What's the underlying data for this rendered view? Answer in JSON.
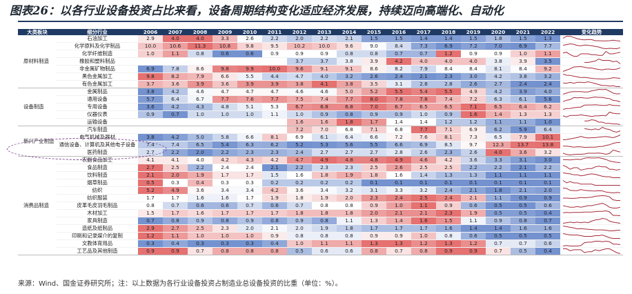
{
  "title": "图表26：以各行业设备投资占比来看，设备周期结构变化适应经济发展，持续迈向高端化、自动化",
  "source": "来源：Wind、国金证券研究所；注：以上数据为各行业设备投资占制造业总设备投资的比重（单位：%）。",
  "headers": {
    "category": "大类板块",
    "subcategory": "细分行业",
    "years": [
      "2006",
      "2007",
      "2008",
      "2009",
      "2010",
      "2011",
      "2012",
      "2013",
      "2014",
      "2015",
      "2016",
      "2017",
      "2018",
      "2019",
      "2020",
      "2021",
      "2022"
    ],
    "trend": "变化趋势"
  },
  "colors": {
    "header_bg": "#1f3a63",
    "high": "#e05858",
    "low": "#5b7fc7",
    "mid": "#ffffff",
    "spark": "#a52a3a",
    "highlight": "#7a3d8a"
  },
  "groups": [
    {
      "name": "原材料制造",
      "rows": [
        {
          "name": "石油加工",
          "values": [
            2.9,
            4.0,
            4.0,
            3.3,
            2.6,
            2.2,
            2.0,
            2.2,
            2.1,
            1.5,
            1.5,
            1.4,
            1.4,
            1.5,
            1.8,
            1.5,
            1.3
          ]
        },
        {
          "name": "化学原料及化学制品",
          "values": [
            10.0,
            10.6,
            11.3,
            10.8,
            9.8,
            9.5,
            10.2,
            10.0,
            9.6,
            9.0,
            8.4,
            7.3,
            6.9,
            7.2,
            7.0,
            6.9,
            7.7
          ]
        },
        {
          "name": "化学纤维制造",
          "values": [
            1.0,
            1.1,
            0.8,
            0.6,
            0.6,
            0.9,
            0.9,
            0.9,
            0.8,
            0.8,
            0.7,
            0.7,
            1.2,
            0.9,
            0.9,
            1.0,
            1.1
          ]
        },
        {
          "name": "橡胶和塑料制品",
          "values": [
            null,
            null,
            null,
            null,
            null,
            null,
            3.7,
            3.7,
            3.8,
            3.9,
            4.2,
            4.0,
            4.0,
            4.0,
            3.8,
            3.9,
            3.5
          ]
        },
        {
          "name": "非金属矿物制品",
          "values": [
            6.9,
            7.8,
            8.6,
            9.8,
            9.9,
            10.0,
            9.6,
            9.1,
            9.1,
            8.6,
            8.2,
            7.9,
            8.4,
            8.4,
            8.1,
            8.4,
            9.2
          ]
        },
        {
          "name": "黑色金属加工",
          "values": [
            9.8,
            8.2,
            7.9,
            6.6,
            5.5,
            4.4,
            4.7,
            4.0,
            3.2,
            2.6,
            2.4,
            2.1,
            2.3,
            3.0,
            4.2,
            3.8,
            3.2
          ]
        },
        {
          "name": "有色金属加工",
          "values": [
            3.7,
            3.6,
            3.9,
            3.6,
            3.9,
            3.9,
            3.8,
            4.1,
            3.8,
            3.5,
            3.1,
            2.8,
            2.8,
            2.6,
            2.7,
            2.4,
            2.4
          ]
        }
      ]
    },
    {
      "name": "设备制造",
      "rows": [
        {
          "name": "金属制品",
          "values": [
            3.8,
            4.2,
            4.6,
            4.7,
            4.7,
            4.7,
            4.6,
            4.6,
            5.0,
            5.2,
            5.5,
            5.4,
            5.5,
            4.9,
            4.2,
            3.9,
            4.0
          ]
        },
        {
          "name": "通用设备",
          "values": [
            5.7,
            6.4,
            6.7,
            7.7,
            7.6,
            7.7,
            7.5,
            7.4,
            7.7,
            8.0,
            7.8,
            7.8,
            7.4,
            7.2,
            6.3,
            6.1,
            5.6
          ]
        },
        {
          "name": "专用设备",
          "values": [
            3.6,
            4.2,
            4.3,
            4.8,
            5.1,
            5.3,
            6.7,
            6.8,
            6.8,
            7.0,
            6.7,
            6.5,
            6.5,
            7.1,
            6.5,
            6.4,
            6.2
          ]
        },
        {
          "name": "仪器仪表",
          "values": [
            0.9,
            0.7,
            1.0,
            1.0,
            1.0,
            1.1,
            1.0,
            0.9,
            0.8,
            0.9,
            0.9,
            1.0,
            0.9,
            1.6,
            1.4,
            1.3,
            1.3
          ]
        },
        {
          "name": "运输设备",
          "values": [
            null,
            null,
            null,
            null,
            null,
            null,
            1.6,
            1.6,
            1.8,
            1.7,
            1.4,
            1.4,
            1.2,
            1.2,
            1.1,
            1.1,
            1.0
          ]
        }
      ]
    },
    {
      "name": "新兴产业制造",
      "rows": [
        {
          "name": "汽车制造",
          "values": [
            null,
            null,
            null,
            null,
            null,
            null,
            7.2,
            7.0,
            6.8,
            7.1,
            6.8,
            7.7,
            7.1,
            6.9,
            6.2,
            5.9,
            6.4
          ]
        },
        {
          "name": "电气机械及器材",
          "values": [
            3.8,
            4.2,
            5.0,
            5.8,
            6.6,
            8.1,
            6.9,
            6.1,
            6.4,
            6.6,
            7.2,
            7.6,
            8.1,
            7.3,
            6.5,
            7.9,
            10.1
          ]
        },
        {
          "name": "通信设备、计算机及其他电子设备",
          "values": [
            7.4,
            7.4,
            6.5,
            5.4,
            6.3,
            6.2,
            5.2,
            5.3,
            5.6,
            5.5,
            6.6,
            6.9,
            8.5,
            9.7,
            12.3,
            13.7,
            13.8
          ]
        },
        {
          "name": "医药制造",
          "values": [
            2.7,
            2.2,
            2.0,
            2.2,
            2.3,
            2.3,
            2.4,
            2.7,
            2.7,
            2.7,
            2.8,
            2.6,
            2.3,
            2.6,
            4.0,
            3.6,
            3.2
          ]
        }
      ]
    },
    {
      "name": "消费品制造",
      "rows": [
        {
          "name": "农副食品加工",
          "values": [
            4.1,
            4.1,
            4.0,
            4.2,
            4.3,
            4.2,
            4.7,
            4.9,
            4.8,
            4.8,
            4.9,
            4.6,
            4.2,
            3.6,
            3.3,
            3.1,
            3.0
          ]
        },
        {
          "name": "食品制造",
          "values": [
            2.7,
            2.5,
            2.2,
            2.4,
            2.4,
            2.1,
            2.2,
            2.3,
            2.3,
            2.5,
            2.6,
            2.5,
            2.5,
            2.2,
            2.2,
            2.1,
            2.2
          ]
        },
        {
          "name": "饮料制造",
          "values": [
            2.1,
            2.0,
            1.9,
            1.7,
            1.7,
            1.5,
            1.6,
            1.8,
            1.9,
            1.8,
            1.6,
            1.4,
            1.3,
            1.3,
            1.1,
            1.1,
            1.1
          ]
        },
        {
          "name": "烟草制品",
          "values": [
            0.5,
            0.3,
            0.4,
            0.3,
            0.3,
            0.2,
            0.2,
            0.2,
            0.2,
            0.1,
            0.1,
            0.1,
            0.1,
            0.1,
            0.1,
            0.1,
            0.1
          ]
        },
        {
          "name": "纺织",
          "values": [
            5.2,
            4.9,
            3.6,
            3.4,
            3.4,
            4.2,
            3.6,
            3.4,
            3.2,
            3.1,
            3.3,
            3.2,
            2.4,
            2.1,
            1.8,
            2.1,
            2.0
          ]
        },
        {
          "name": "纺织服装",
          "values": [
            1.7,
            1.7,
            1.6,
            1.6,
            1.7,
            1.9,
            1.8,
            1.9,
            2.0,
            2.3,
            2.4,
            2.5,
            2.4,
            2.1,
            1.1,
            0.9,
            0.9
          ]
        },
        {
          "name": "皮革毛皮羽毛制品",
          "values": [
            0.8,
            0.7,
            0.6,
            0.6,
            0.7,
            0.6,
            0.7,
            0.8,
            0.8,
            0.9,
            1.0,
            1.1,
            0.9,
            0.6,
            0.5,
            0.5,
            0.6
          ]
        },
        {
          "name": "木材加工",
          "values": [
            1.5,
            1.7,
            1.6,
            1.7,
            1.7,
            1.7,
            1.8,
            1.8,
            1.8,
            2.0,
            2.1,
            2.1,
            2.3,
            1.9,
            0.5,
            0.5,
            0.4
          ]
        },
        {
          "name": "家具制造",
          "values": [
            0.7,
            0.8,
            0.9,
            0.8,
            0.9,
            0.8,
            0.9,
            0.8,
            1.1,
            1.3,
            1.4,
            1.6,
            1.5,
            1.1,
            0.9,
            0.8,
            0.7
          ]
        },
        {
          "name": "造纸及纸制品",
          "values": [
            2.9,
            2.7,
            2.5,
            2.3,
            2.0,
            2.1,
            2.0,
            1.9,
            1.8,
            1.7,
            1.7,
            1.7,
            1.6,
            1.4,
            1.4,
            1.6,
            1.6
          ]
        },
        {
          "name": "印刷和记录媒介的复制",
          "values": [
            1.2,
            1.1,
            1.0,
            1.0,
            1.0,
            0.9,
            0.8,
            0.8,
            0.8,
            0.9,
            0.9,
            1.0,
            0.8,
            0.6,
            0.5,
            0.5,
            0.5
          ]
        },
        {
          "name": "文教体育用品",
          "values": [
            0.3,
            0.4,
            0.3,
            0.3,
            0.3,
            0.4,
            1.0,
            1.1,
            1.1,
            1.3,
            1.3,
            1.2,
            1.3,
            1.2,
            0.7,
            0.7,
            0.6
          ]
        },
        {
          "name": "工艺品及其他制造",
          "values": [
            0.9,
            0.9,
            0.7,
            0.8,
            0.8,
            0.8,
            0.5,
            0.6,
            0.6,
            0.8,
            0.7,
            0.8,
            0.9,
            0.9,
            0.7,
            0.5,
            0.4
          ]
        }
      ]
    }
  ]
}
